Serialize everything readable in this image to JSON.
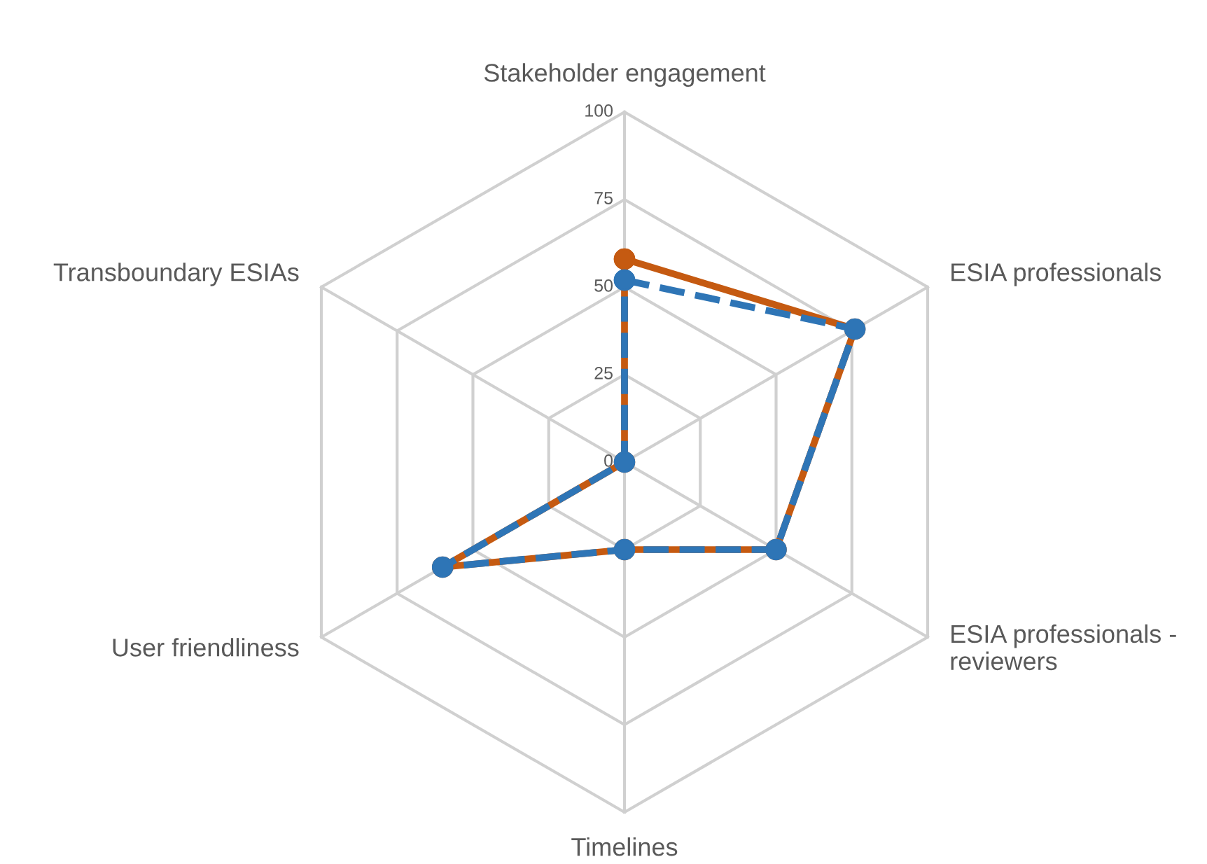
{
  "chart_data": {
    "type": "radar",
    "categories": [
      "Stakeholder engagement",
      "ESIA professionals",
      "ESIA professionals - reviewers",
      "Timelines",
      "User friendliness",
      "Transboundary ESIAs"
    ],
    "series": [
      {
        "color": "#c55a11",
        "values": [
          58,
          76,
          50,
          25,
          60,
          0
        ],
        "line_style": "solid"
      },
      {
        "color": "#2e75b6",
        "values": [
          52,
          76,
          50,
          25,
          60,
          0
        ],
        "line_style": "dashed"
      }
    ],
    "ylim": [
      0,
      100
    ],
    "yticks": [
      0,
      25,
      50,
      75,
      100
    ],
    "grid": true,
    "marker": "circle"
  }
}
